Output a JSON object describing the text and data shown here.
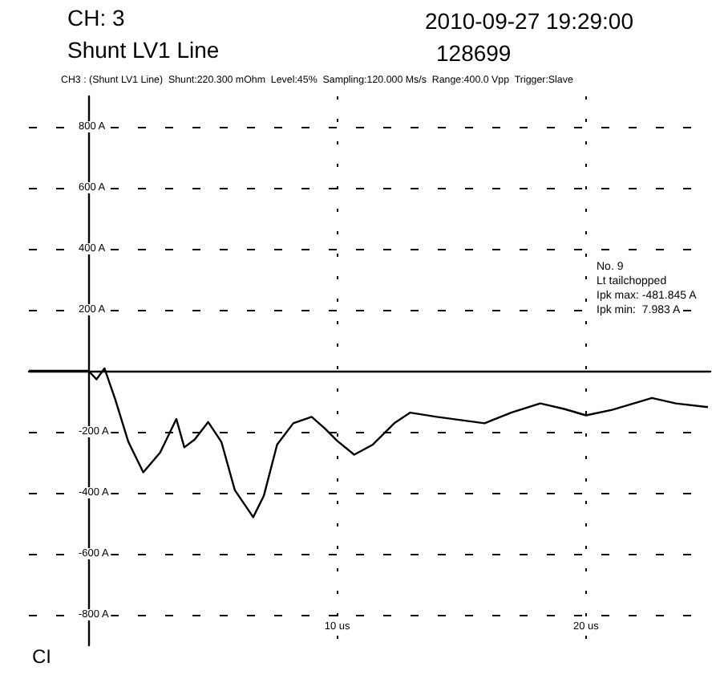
{
  "chart_data": {
    "type": "line",
    "title": "CH: 3",
    "subtitle": "Shunt LV1 Line",
    "annotations": [
      "2010-09-27 19:29:00",
      "128699",
      "CH3 : (Shunt LV1 Line)  Shunt:220.300 mOhm  Level:45%  Sampling:120.000 Ms/s  Range:400.0 Vpp  Trigger:Slave",
      "No. 9",
      "Lt tailchopped",
      "Ipk max: -481.845 A",
      "Ipk min:  7.983 A",
      "CI"
    ],
    "series": [
      {
        "color": "#000000",
        "x": [
          -2.4,
          0,
          0.32,
          0.64,
          1.07,
          1.6,
          2.2,
          2.88,
          3.53,
          3.85,
          4.27,
          4.81,
          5.34,
          5.88,
          6.62,
          7.05,
          7.58,
          8.23,
          8.97,
          9.5,
          10,
          10.68,
          11.43,
          12.29,
          12.93,
          14.0,
          15.92,
          16.99,
          18.16,
          19.12,
          20,
          21.05,
          22.65,
          23.61,
          24.9
        ],
        "values": [
          0,
          0,
          -28,
          8,
          -93,
          -233,
          -333,
          -268,
          -158,
          -251,
          -225,
          -168,
          -233,
          -391,
          -480,
          -409,
          -242,
          -172,
          -151,
          -189,
          -230,
          -275,
          -242,
          -172,
          -137,
          -151,
          -172,
          -137,
          -107,
          -125,
          -146,
          -128,
          -89,
          -107,
          -119
        ]
      }
    ],
    "xlim": [
      -2.4,
      25
    ],
    "ylim": [
      -900,
      900
    ],
    "xticks": [
      {
        "value": 10,
        "label": "10 us"
      },
      {
        "value": 20,
        "label": "20 us"
      }
    ],
    "yticks": [
      {
        "value": -800,
        "label": "-800 A"
      },
      {
        "value": -600,
        "label": "-600 A"
      },
      {
        "value": -400,
        "label": "-400 A"
      },
      {
        "value": -200,
        "label": "-200 A"
      },
      {
        "value": 0,
        "label": null
      },
      {
        "value": 200,
        "label": "200 A"
      },
      {
        "value": 400,
        "label": "400 A"
      },
      {
        "value": 600,
        "label": "600 A"
      },
      {
        "value": 800,
        "label": "800 A"
      }
    ],
    "grid": true,
    "marker": "none",
    "line_style": "solid"
  }
}
